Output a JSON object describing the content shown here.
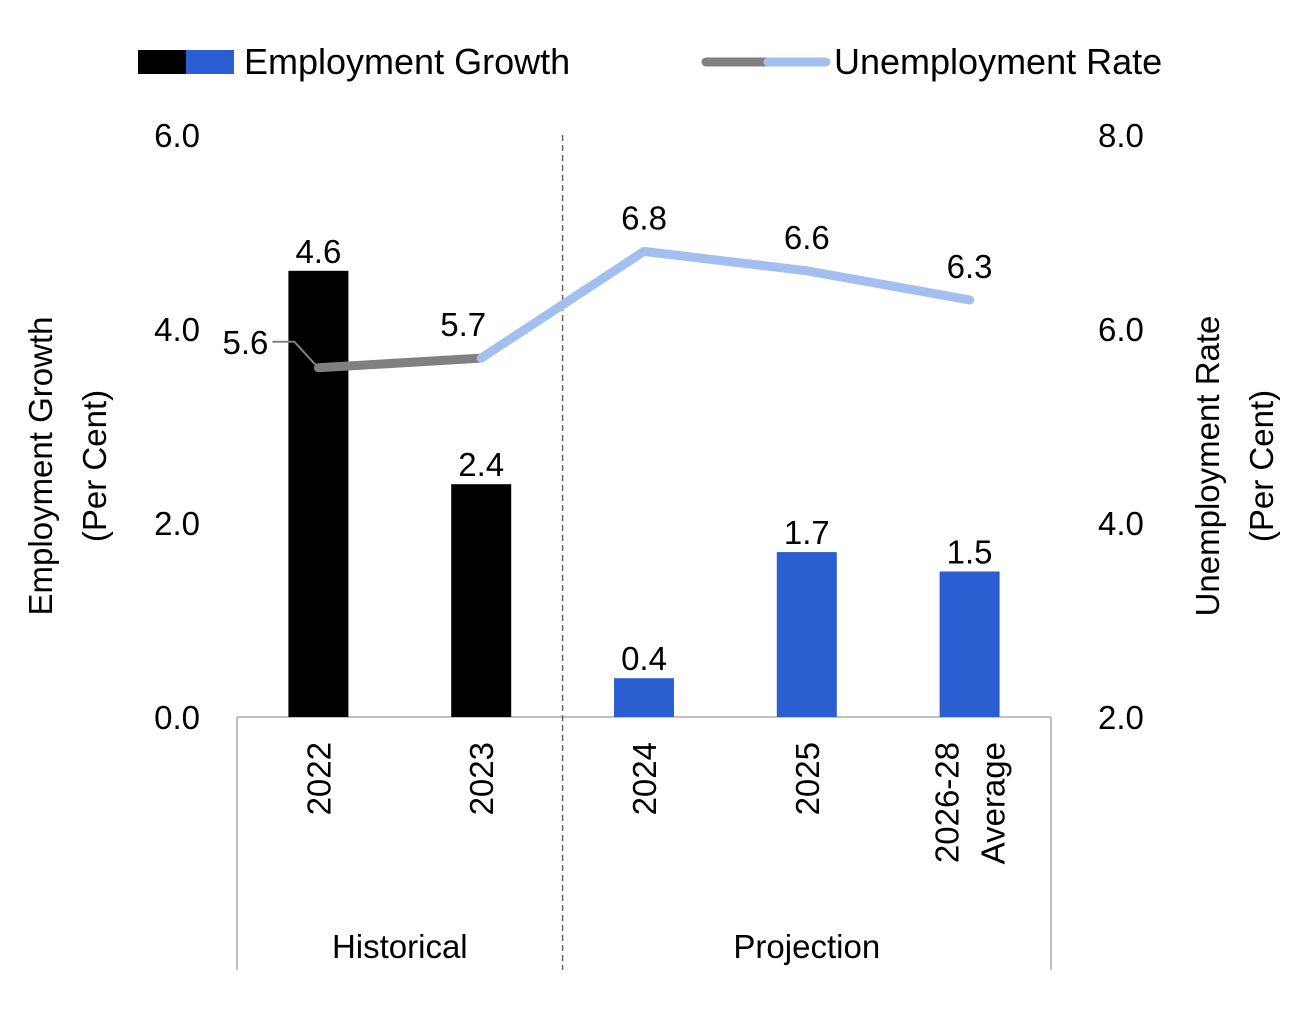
{
  "colors": {
    "hist_bar": "#000000",
    "proj_bar": "#2b5fd1",
    "hist_line": "#808080",
    "proj_line": "#a3bff0",
    "axis": "#c0c0c0",
    "divider": "#666666"
  },
  "chart_data": {
    "type": "bar",
    "legend": [
      {
        "label": "Employment Growth",
        "kind": "bar"
      },
      {
        "label": "Unemployment Rate",
        "kind": "line"
      }
    ],
    "legend_position": "top",
    "categories": [
      {
        "lines": [
          "2022"
        ]
      },
      {
        "lines": [
          "2023"
        ]
      },
      {
        "lines": [
          "2024"
        ]
      },
      {
        "lines": [
          "2025"
        ]
      },
      {
        "lines": [
          "2026-28",
          "Average"
        ]
      }
    ],
    "groups": [
      {
        "label": "Historical",
        "from": 0,
        "to": 1
      },
      {
        "label": "Projection",
        "from": 2,
        "to": 4
      }
    ],
    "series": [
      {
        "name": "Employment Growth",
        "type": "bar",
        "axis": "left",
        "values": [
          4.6,
          2.4,
          0.4,
          1.7,
          1.5
        ],
        "labels": [
          "4.6",
          "2.4",
          "0.4",
          "1.7",
          "1.5"
        ]
      },
      {
        "name": "Unemployment Rate",
        "type": "line",
        "axis": "right",
        "values": [
          5.6,
          5.7,
          6.8,
          6.6,
          6.3
        ],
        "labels": [
          "5.6",
          "5.7",
          "6.8",
          "6.6",
          "6.3"
        ]
      }
    ],
    "y_left": {
      "label_lines": [
        "Employment Growth",
        "(Per Cent)"
      ],
      "min": 0,
      "max": 6,
      "ticks": [
        "0.0",
        "2.0",
        "4.0",
        "6.0"
      ]
    },
    "y_right": {
      "label_lines": [
        "Unemployment Rate",
        "(Per Cent)"
      ],
      "min": 2,
      "max": 8,
      "ticks": [
        "2.0",
        "4.0",
        "6.0",
        "8.0"
      ]
    },
    "projection_start_index": 2,
    "grid": false
  }
}
